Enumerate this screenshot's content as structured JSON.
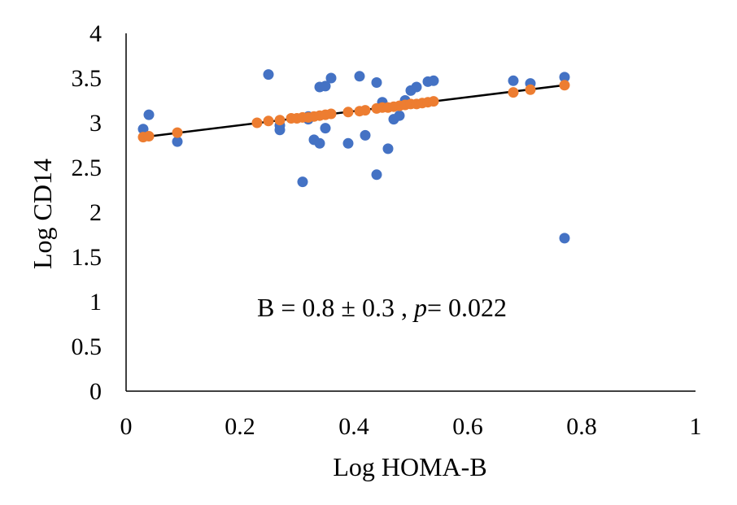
{
  "chart_data": {
    "type": "scatter",
    "title": "",
    "xlabel": "Log HOMA-B",
    "ylabel": "Log CD14",
    "xlim": [
      0,
      1
    ],
    "ylim": [
      0,
      4
    ],
    "x_ticks": [
      "0",
      "0.2",
      "0.4",
      "0.6",
      "0.8",
      "1"
    ],
    "y_ticks": [
      "0",
      "0.5",
      "1",
      "1.5",
      "2",
      "2.5",
      "3",
      "3.5",
      "4"
    ],
    "grid": false,
    "legend": "none",
    "annotation": {
      "prefix": "B = 0.8 ± 0.3 , ",
      "p_symbol": "p",
      "suffix": "= 0.022"
    },
    "series": [
      {
        "color": "#4472C4",
        "marker": "circle",
        "points": [
          [
            0.03,
            2.93
          ],
          [
            0.04,
            3.09
          ],
          [
            0.09,
            2.79
          ],
          [
            0.25,
            3.54
          ],
          [
            0.27,
            2.97
          ],
          [
            0.27,
            2.92
          ],
          [
            0.31,
            2.34
          ],
          [
            0.32,
            3.07
          ],
          [
            0.32,
            3.04
          ],
          [
            0.33,
            2.81
          ],
          [
            0.34,
            2.77
          ],
          [
            0.34,
            3.4
          ],
          [
            0.35,
            3.41
          ],
          [
            0.35,
            2.94
          ],
          [
            0.36,
            3.5
          ],
          [
            0.39,
            2.77
          ],
          [
            0.41,
            3.52
          ],
          [
            0.42,
            2.86
          ],
          [
            0.44,
            3.45
          ],
          [
            0.44,
            2.42
          ],
          [
            0.45,
            3.23
          ],
          [
            0.46,
            2.71
          ],
          [
            0.47,
            3.04
          ],
          [
            0.48,
            3.08
          ],
          [
            0.49,
            3.25
          ],
          [
            0.5,
            3.36
          ],
          [
            0.51,
            3.4
          ],
          [
            0.53,
            3.46
          ],
          [
            0.54,
            3.47
          ],
          [
            0.68,
            3.47
          ],
          [
            0.71,
            3.44
          ],
          [
            0.77,
            3.51
          ],
          [
            0.77,
            1.71
          ]
        ]
      },
      {
        "color": "#ED7D31",
        "marker": "circle",
        "points": [
          [
            0.03,
            2.84
          ],
          [
            0.04,
            2.85
          ],
          [
            0.09,
            2.89
          ],
          [
            0.23,
            3.0
          ],
          [
            0.25,
            3.02
          ],
          [
            0.27,
            3.03
          ],
          [
            0.29,
            3.05
          ],
          [
            0.3,
            3.05
          ],
          [
            0.31,
            3.06
          ],
          [
            0.32,
            3.06
          ],
          [
            0.33,
            3.07
          ],
          [
            0.34,
            3.08
          ],
          [
            0.35,
            3.09
          ],
          [
            0.36,
            3.1
          ],
          [
            0.39,
            3.12
          ],
          [
            0.41,
            3.13
          ],
          [
            0.42,
            3.14
          ],
          [
            0.44,
            3.16
          ],
          [
            0.45,
            3.17
          ],
          [
            0.46,
            3.17
          ],
          [
            0.47,
            3.18
          ],
          [
            0.48,
            3.19
          ],
          [
            0.49,
            3.2
          ],
          [
            0.5,
            3.21
          ],
          [
            0.51,
            3.21
          ],
          [
            0.52,
            3.22
          ],
          [
            0.53,
            3.23
          ],
          [
            0.54,
            3.24
          ],
          [
            0.68,
            3.34
          ],
          [
            0.71,
            3.37
          ],
          [
            0.77,
            3.42
          ]
        ]
      }
    ],
    "trendline": {
      "color": "#000000",
      "points": [
        [
          0.03,
          2.84
        ],
        [
          0.77,
          3.42
        ]
      ]
    }
  }
}
